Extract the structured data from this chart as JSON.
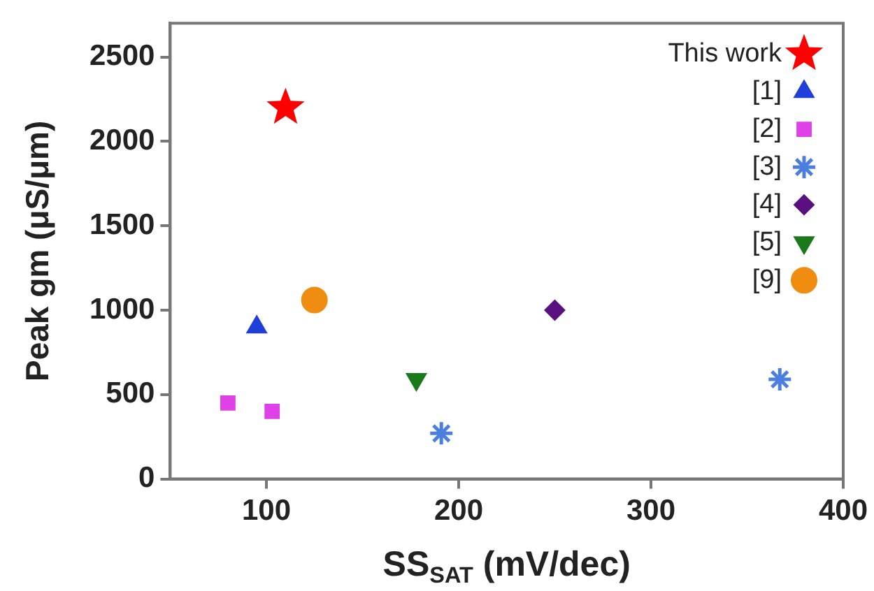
{
  "chart_data": {
    "type": "scatter",
    "xlabel": "SS$_{SAT}$ (mV/dec)",
    "ylabel": "Peak gm (μS/μm)",
    "xlim": [
      50,
      400
    ],
    "xticks": [
      100,
      200,
      300,
      400
    ],
    "ylim": [
      0,
      2700
    ],
    "yticks": [
      0,
      500,
      1000,
      1500,
      2000,
      2500
    ],
    "grid": false,
    "legend": "top right",
    "series": [
      {
        "name": "This work",
        "color": "#ff0000",
        "marker": "star",
        "x": [
          110
        ],
        "values": [
          2200
        ]
      },
      {
        "name": "[1]",
        "color": "#1f3fd8",
        "marker": "triangle",
        "x": [
          95
        ],
        "values": [
          900
        ]
      },
      {
        "name": "[2]",
        "color": "#e040e8",
        "marker": "square",
        "x": [
          80,
          103
        ],
        "values": [
          450,
          400
        ]
      },
      {
        "name": "[3]",
        "color": "#4a7fe0",
        "marker": "cross",
        "x": [
          191,
          367
        ],
        "values": [
          270,
          590
        ]
      },
      {
        "name": "[4]",
        "color": "#5a1080",
        "marker": "diamond",
        "x": [
          250
        ],
        "values": [
          1000
        ]
      },
      {
        "name": "[5]",
        "color": "#1a7a1a",
        "marker": "triangle-down",
        "x": [
          178
        ],
        "values": [
          590
        ]
      },
      {
        "name": "[9]",
        "color": "#f08c10",
        "marker": "circle",
        "x": [
          125
        ],
        "values": [
          1060
        ]
      }
    ]
  }
}
